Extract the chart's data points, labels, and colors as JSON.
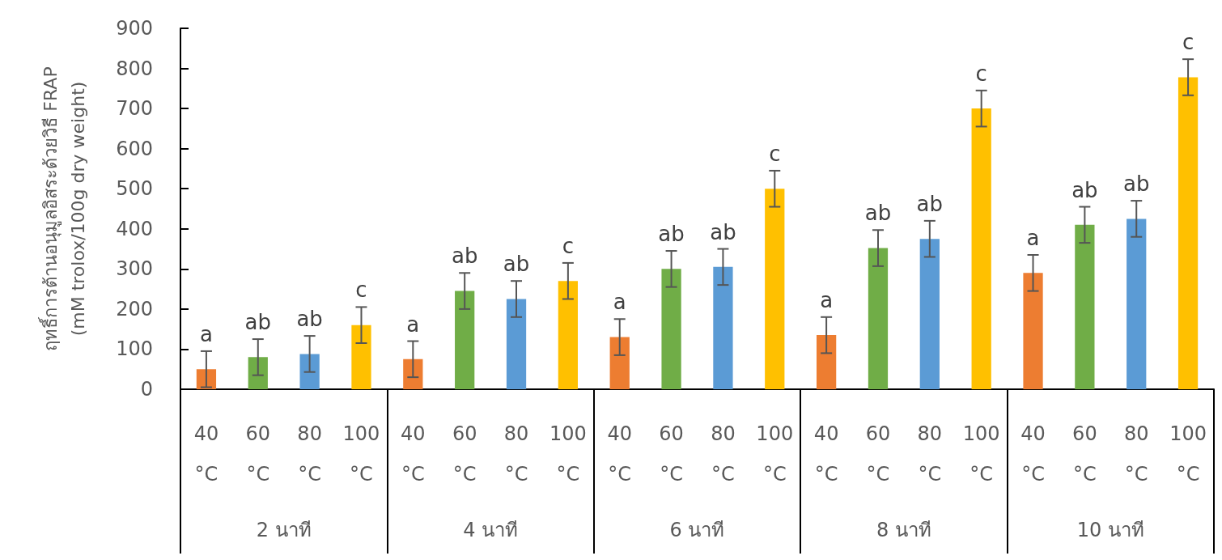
{
  "chart_data": {
    "type": "bar",
    "ylabel": "ฤทธิ์การต้านอนุมูลอิสระด้วยวิธี FRAP\n(mM trolox/100g dry weight)",
    "categories": [
      "40 °C",
      "60 °C",
      "80 °C",
      "100 °C",
      "40 °C",
      "60 °C",
      "80 °C",
      "100 °C",
      "40 °C",
      "60 °C",
      "80 °C",
      "100 °C",
      "40 °C",
      "60 °C",
      "80 °C",
      "100 °C",
      "40 °C",
      "60 °C",
      "80 °C",
      "100 °C"
    ],
    "values": [
      50,
      80,
      88,
      160,
      75,
      245,
      225,
      270,
      130,
      300,
      305,
      500,
      135,
      352,
      375,
      700,
      290,
      410,
      425,
      778
    ],
    "errors": [
      45,
      45,
      45,
      45,
      45,
      45,
      45,
      45,
      45,
      45,
      45,
      45,
      45,
      45,
      45,
      45,
      45,
      45,
      45,
      45
    ],
    "colors": [
      "#ed7d31",
      "#70ad47",
      "#5b9bd5",
      "#ffc000",
      "#ed7d31",
      "#70ad47",
      "#5b9bd5",
      "#ffc000",
      "#ed7d31",
      "#70ad47",
      "#5b9bd5",
      "#ffc000",
      "#ed7d31",
      "#70ad47",
      "#5b9bd5",
      "#ffc000",
      "#ed7d31",
      "#70ad47",
      "#5b9bd5",
      "#ffc000"
    ],
    "value_labels": [
      "a",
      "ab",
      "ab",
      "c",
      "a",
      "ab",
      "ab",
      "c",
      "a",
      "ab",
      "ab",
      "c",
      "a",
      "ab",
      "ab",
      "c",
      "a",
      "ab",
      "ab",
      "c"
    ],
    "annotations": [
      "2 นาที",
      "4 นาที",
      "6 นาที",
      "8 นาที",
      "10 นาที"
    ],
    "ylim": [
      0,
      900
    ],
    "yticks": [
      0,
      100,
      200,
      300,
      400,
      500,
      600,
      700,
      800,
      900
    ]
  }
}
